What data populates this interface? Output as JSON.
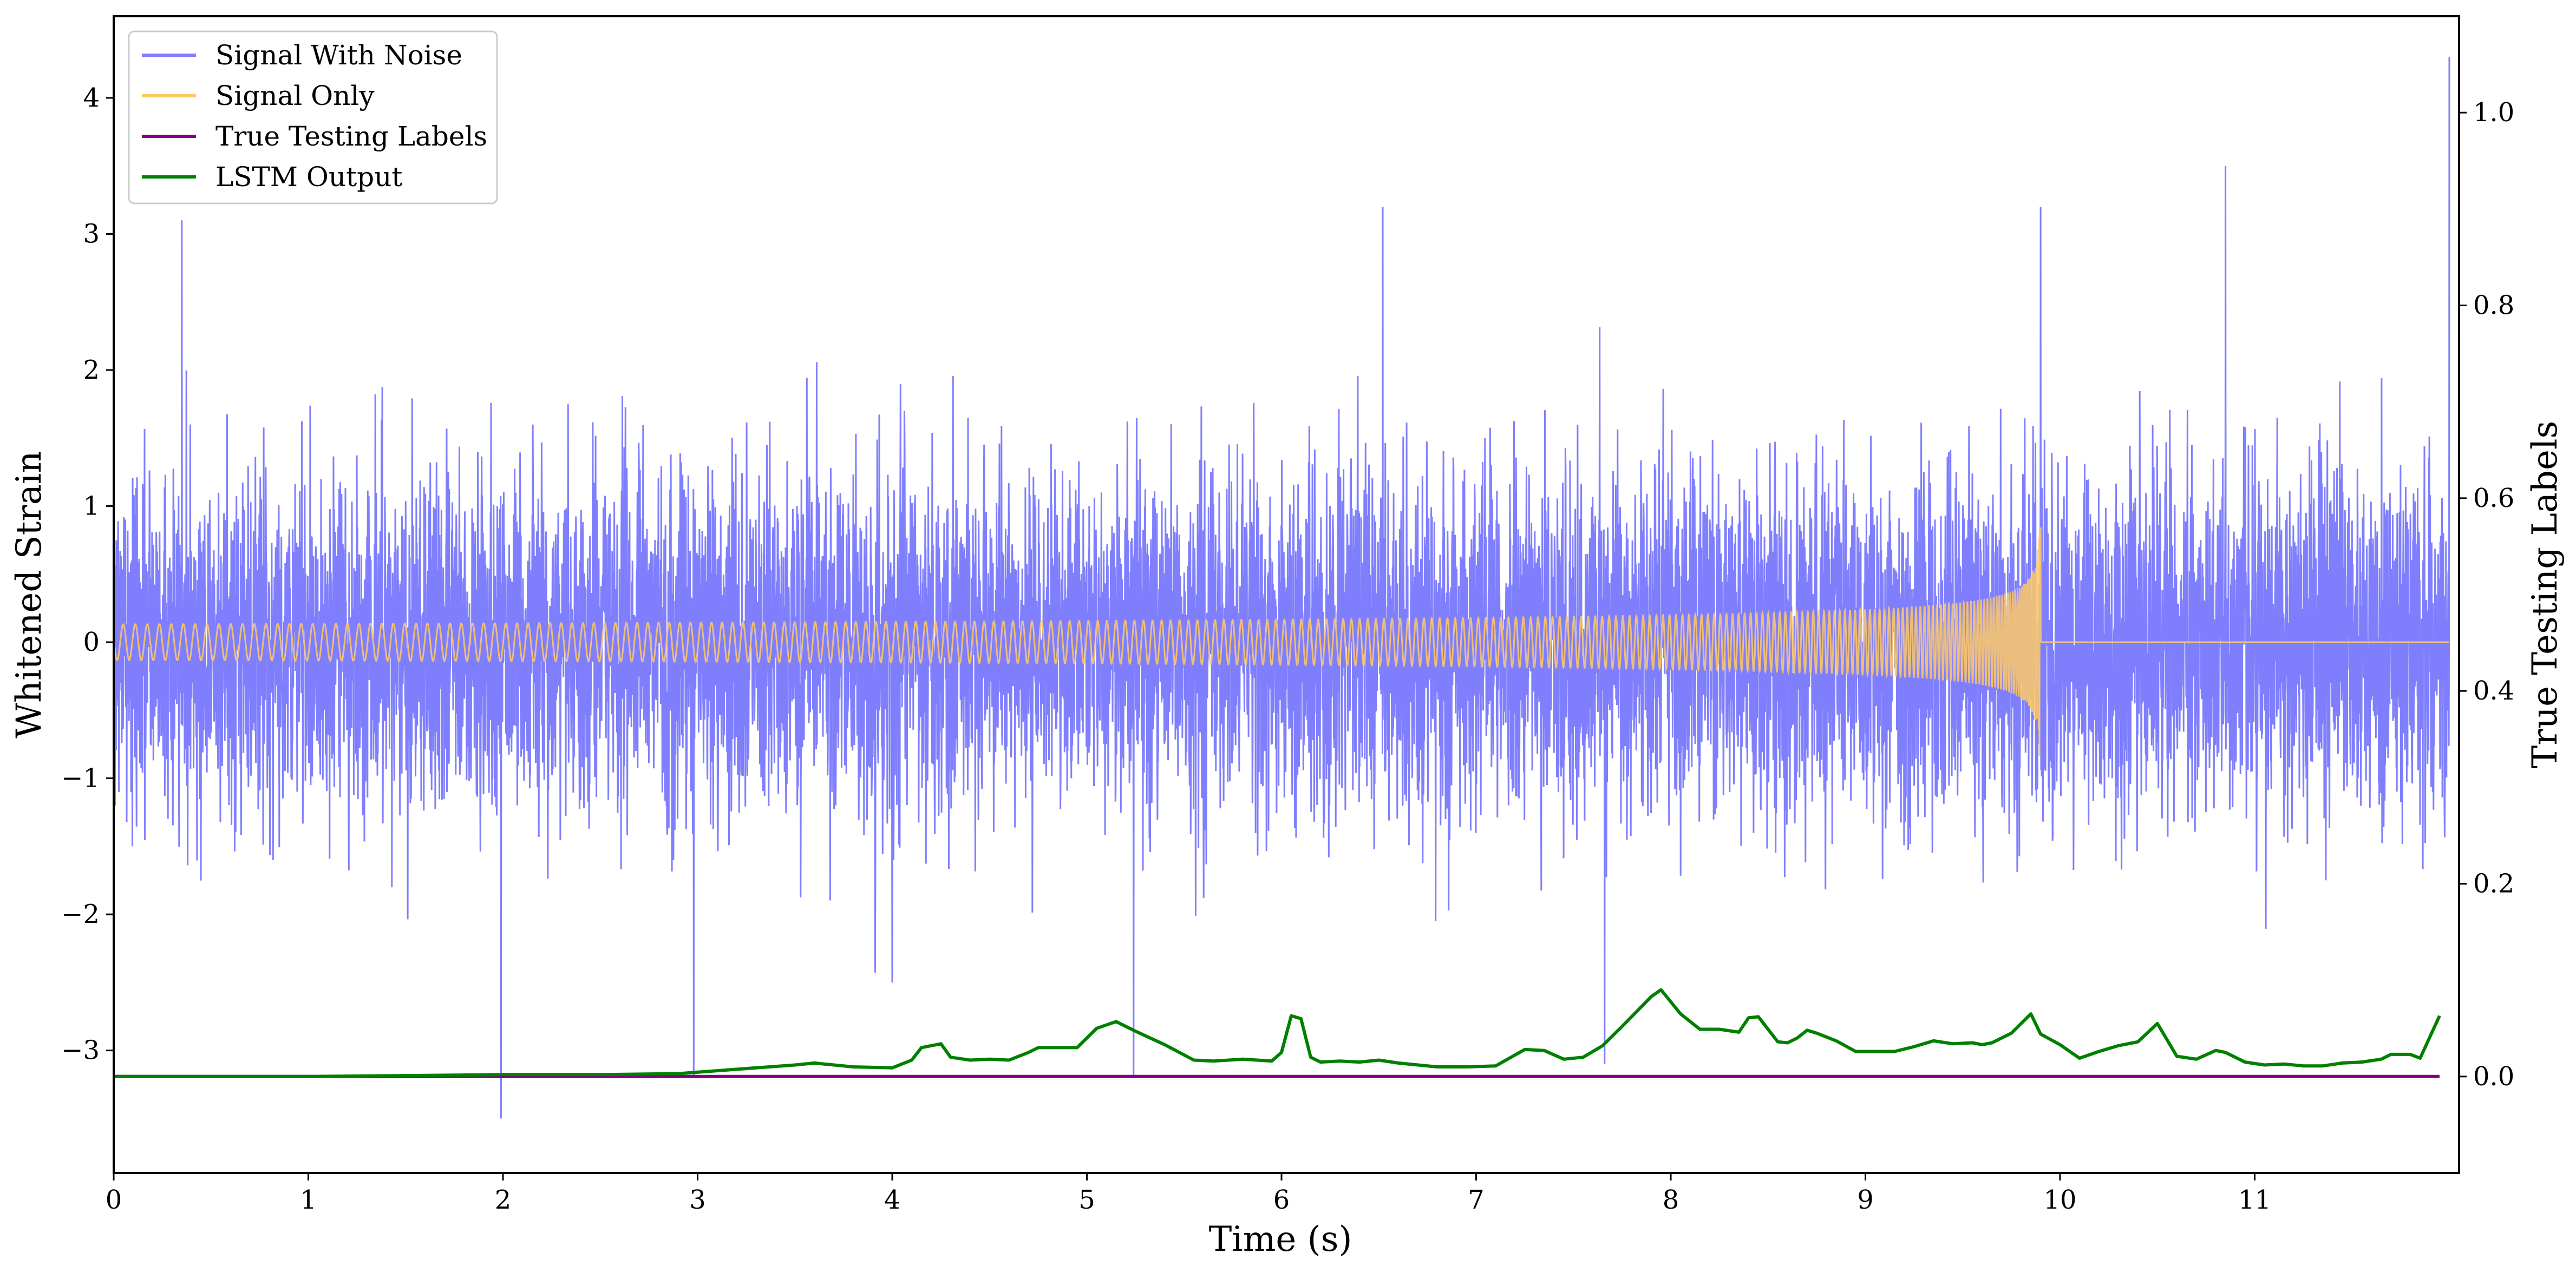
{
  "chart_data": {
    "type": "line",
    "xlabel": "Time (s)",
    "ylabel": "Whitened Strain",
    "y2label": "True Testing Labels",
    "xlim": [
      0,
      12.05
    ],
    "ylim": [
      -3.9,
      4.6
    ],
    "y2lim": [
      -0.1,
      1.1
    ],
    "xticks": [
      "0",
      "1",
      "2",
      "3",
      "4",
      "5",
      "6",
      "7",
      "8",
      "9",
      "10",
      "11"
    ],
    "yticks": [
      "−3",
      "−2",
      "−1",
      "0",
      "1",
      "2",
      "3",
      "4"
    ],
    "y2ticks": [
      "0.0",
      "0.2",
      "0.4",
      "0.6",
      "0.8",
      "1.0"
    ],
    "grid": false,
    "legend_position": "upper-left",
    "series": [
      {
        "name": "Signal With Noise",
        "color": "#7f7ffe",
        "axis": "left",
        "description": "dense noise, typical amplitude about ±1.5, extremes reach -3.5 and 4.3",
        "notable_spikes": [
          {
            "x": 0.35,
            "y": 3.1
          },
          {
            "x": 1.99,
            "y": -3.5
          },
          {
            "x": 2.98,
            "y": -3.2
          },
          {
            "x": 5.24,
            "y": -3.2
          },
          {
            "x": 6.52,
            "y": 3.2
          },
          {
            "x": 7.66,
            "y": -3.1
          },
          {
            "x": 9.9,
            "y": 3.2
          },
          {
            "x": 10.85,
            "y": 3.5
          },
          {
            "x": 12.0,
            "y": 4.3
          }
        ]
      },
      {
        "name": "Signal Only",
        "color": "#ffc966",
        "axis": "left",
        "description": "chirp oscillation growing from near zero to about ±0.93, ending at 9.9 s",
        "chirp_end": 9.9,
        "peak_amplitude": 0.93
      },
      {
        "name": "True Testing Labels",
        "color": "#800080",
        "axis": "right",
        "x": [
          0,
          11.95
        ],
        "y": [
          0,
          0
        ]
      },
      {
        "name": "LSTM Output",
        "color": "#008000",
        "axis": "right",
        "x": [
          0,
          0.5,
          1.0,
          1.5,
          2.0,
          2.5,
          2.9,
          3.1,
          3.3,
          3.5,
          3.6,
          3.8,
          4.0,
          4.1,
          4.15,
          4.25,
          4.3,
          4.4,
          4.5,
          4.6,
          4.7,
          4.75,
          4.85,
          4.95,
          5.05,
          5.15,
          5.25,
          5.4,
          5.55,
          5.65,
          5.8,
          5.95,
          6.0,
          6.05,
          6.1,
          6.15,
          6.2,
          6.3,
          6.4,
          6.5,
          6.6,
          6.8,
          6.95,
          7.1,
          7.25,
          7.35,
          7.45,
          7.55,
          7.65,
          7.75,
          7.9,
          7.95,
          8.05,
          8.15,
          8.25,
          8.35,
          8.4,
          8.45,
          8.55,
          8.6,
          8.65,
          8.7,
          8.75,
          8.85,
          8.95,
          9.05,
          9.15,
          9.25,
          9.35,
          9.45,
          9.55,
          9.6,
          9.65,
          9.75,
          9.85,
          9.9,
          10.0,
          10.1,
          10.2,
          10.3,
          10.4,
          10.5,
          10.6,
          10.7,
          10.8,
          10.85,
          10.95,
          11.05,
          11.15,
          11.25,
          11.35,
          11.45,
          11.55,
          11.65,
          11.7,
          11.8,
          11.85,
          11.95
        ],
        "y": [
          0.0,
          0.0,
          0.0,
          0.001,
          0.002,
          0.002,
          0.003,
          0.006,
          0.009,
          0.012,
          0.014,
          0.01,
          0.009,
          0.017,
          0.03,
          0.034,
          0.02,
          0.017,
          0.018,
          0.017,
          0.025,
          0.03,
          0.03,
          0.03,
          0.05,
          0.057,
          0.047,
          0.033,
          0.017,
          0.016,
          0.018,
          0.016,
          0.025,
          0.063,
          0.06,
          0.02,
          0.015,
          0.016,
          0.015,
          0.017,
          0.014,
          0.01,
          0.01,
          0.011,
          0.028,
          0.027,
          0.018,
          0.02,
          0.032,
          0.052,
          0.083,
          0.09,
          0.065,
          0.049,
          0.049,
          0.046,
          0.061,
          0.062,
          0.036,
          0.035,
          0.04,
          0.048,
          0.045,
          0.037,
          0.026,
          0.026,
          0.026,
          0.031,
          0.037,
          0.034,
          0.035,
          0.033,
          0.035,
          0.045,
          0.065,
          0.044,
          0.033,
          0.019,
          0.026,
          0.032,
          0.036,
          0.055,
          0.021,
          0.018,
          0.027,
          0.025,
          0.015,
          0.012,
          0.013,
          0.011,
          0.011,
          0.014,
          0.015,
          0.018,
          0.023,
          0.023,
          0.019,
          0.063
        ]
      }
    ]
  }
}
